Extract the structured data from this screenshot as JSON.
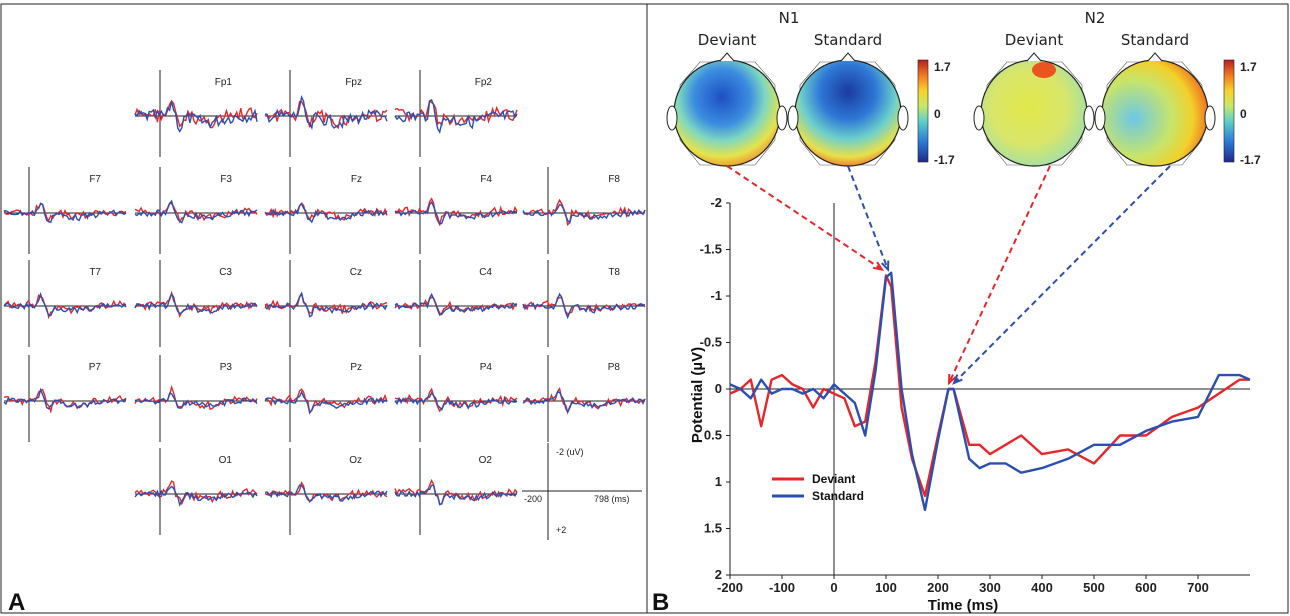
{
  "colors": {
    "deviant": "#e8262a",
    "standard": "#2a4fb0"
  },
  "panel_a": {
    "label": "A",
    "scale_bar": {
      "top_label": "-2 (uV)",
      "bottom_label": "+2",
      "left_label": "-200",
      "right_label": "798 (ms)"
    },
    "electrodes": [
      "Fp1",
      "Fpz",
      "Fp2",
      "F7",
      "F3",
      "Fz",
      "F4",
      "F8",
      "T7",
      "C3",
      "Cz",
      "C4",
      "T8",
      "P7",
      "P3",
      "Pz",
      "P4",
      "P8",
      "O1",
      "Oz",
      "O2"
    ]
  },
  "panel_b": {
    "label": "B",
    "topomaps": {
      "n1_title": "N1",
      "n2_title": "N2",
      "deviant_label": "Deviant",
      "standard_label": "Standard",
      "colorbar_max": "1.7",
      "colorbar_mid": "0",
      "colorbar_min": "-1.7"
    },
    "legend": {
      "deviant": "Deviant",
      "standard": "Standard"
    }
  },
  "chart_data": {
    "type": "line",
    "title": "",
    "xlabel": "Time (ms)",
    "ylabel": "Potential (µV)",
    "xlim": [
      -200,
      800
    ],
    "ylim": [
      2,
      -2
    ],
    "y_axis_inverted": true,
    "x_ticks": [
      "-200",
      "-100",
      "0",
      "100",
      "200",
      "300",
      "400",
      "500",
      "600",
      "700"
    ],
    "y_ticks": [
      "-2",
      "-1.5",
      "-1",
      "-0.5",
      "0",
      "0.5",
      "1",
      "1.5",
      "2"
    ],
    "series": [
      {
        "name": "Deviant",
        "x": [
          -200,
          -180,
          -160,
          -140,
          -120,
          -100,
          -80,
          -60,
          -40,
          -20,
          0,
          20,
          40,
          60,
          80,
          100,
          110,
          130,
          150,
          175,
          200,
          220,
          230,
          260,
          280,
          300,
          330,
          360,
          400,
          450,
          500,
          550,
          600,
          650,
          700,
          740,
          780,
          800
        ],
        "y": [
          0.05,
          0.0,
          -0.1,
          0.4,
          -0.1,
          -0.15,
          -0.05,
          0.0,
          0.2,
          0.0,
          0.05,
          0.1,
          0.4,
          0.35,
          -0.3,
          -1.22,
          -1.1,
          0.2,
          0.75,
          1.15,
          0.5,
          0.0,
          0.0,
          0.6,
          0.6,
          0.7,
          0.6,
          0.5,
          0.7,
          0.65,
          0.8,
          0.5,
          0.5,
          0.3,
          0.2,
          0.05,
          -0.1,
          -0.1
        ]
      },
      {
        "name": "Standard",
        "x": [
          -200,
          -180,
          -160,
          -140,
          -120,
          -100,
          -80,
          -60,
          -40,
          -20,
          0,
          20,
          40,
          60,
          80,
          100,
          110,
          130,
          150,
          175,
          200,
          220,
          230,
          260,
          280,
          300,
          330,
          360,
          400,
          450,
          500,
          550,
          600,
          650,
          700,
          740,
          780,
          800
        ],
        "y": [
          -0.05,
          0.0,
          0.1,
          -0.1,
          0.05,
          0.0,
          0.0,
          0.05,
          0.0,
          0.1,
          -0.05,
          0.05,
          0.15,
          0.5,
          -0.2,
          -1.2,
          -1.25,
          0.0,
          0.7,
          1.3,
          0.55,
          0.0,
          0.0,
          0.75,
          0.85,
          0.8,
          0.8,
          0.9,
          0.85,
          0.75,
          0.6,
          0.6,
          0.45,
          0.35,
          0.3,
          -0.15,
          -0.15,
          -0.1
        ]
      }
    ],
    "legend_position": "bottom-left",
    "annotations": [
      {
        "label": "N1",
        "x": 100,
        "y": -1.22
      },
      {
        "label": "N2",
        "x": 225,
        "y": 0.0
      }
    ]
  }
}
